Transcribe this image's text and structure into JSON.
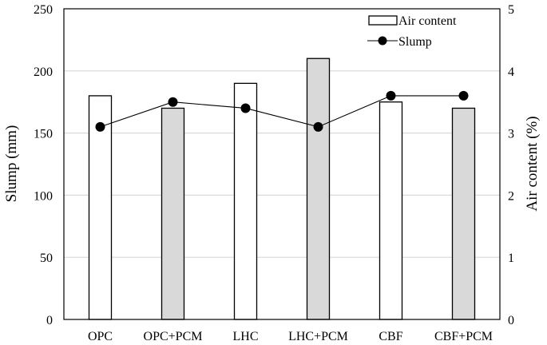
{
  "chart_data": {
    "type": "bar+line",
    "categories": [
      "OPC",
      "OPC+PCM",
      "LHC",
      "LHC+PCM",
      "CBF",
      "CBF+PCM"
    ],
    "series": [
      {
        "name": "Air content",
        "type": "bar",
        "axis": "right",
        "values": [
          3.6,
          3.4,
          3.8,
          4.2,
          3.5,
          3.4
        ],
        "fills": [
          "#ffffff",
          "#d9d9d9",
          "#ffffff",
          "#d9d9d9",
          "#ffffff",
          "#d9d9d9"
        ]
      },
      {
        "name": "Slump",
        "type": "line",
        "axis": "left",
        "values": [
          155,
          175,
          170,
          155,
          180,
          180
        ]
      }
    ],
    "ylabel": "Slump (mm)",
    "y2label": "Air content (%)",
    "ylim": [
      0,
      250
    ],
    "y2lim": [
      0,
      5
    ],
    "yticks": [
      "0",
      "50",
      "100",
      "150",
      "200",
      "250"
    ],
    "y2ticks": [
      "0",
      "1",
      "2",
      "3",
      "4",
      "5"
    ],
    "grid": true,
    "legend": "top-right"
  }
}
